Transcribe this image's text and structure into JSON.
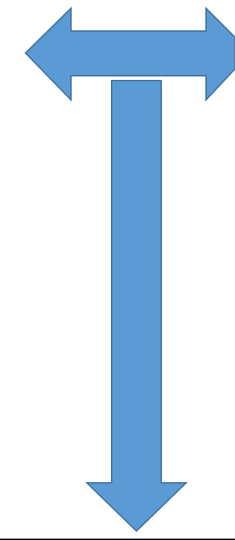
{
  "diagram": {
    "shapes": [
      {
        "kind": "left-right-arrow",
        "label": ""
      },
      {
        "kind": "down-arrow",
        "label": ""
      }
    ],
    "colors": {
      "fill": "#5B9BD5",
      "stroke": "#41719C",
      "background": "#FFFFFF",
      "bottom_rule": "#000000"
    }
  }
}
